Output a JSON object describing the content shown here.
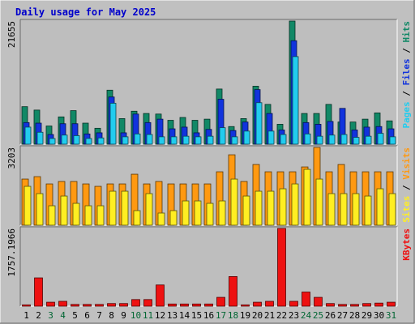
{
  "colors": {
    "background": "#c0c0c0",
    "plot_bg": "#bebebe",
    "title": "#0000cc",
    "hits": "#118866",
    "files": "#1133dd",
    "pages": "#22ccee",
    "visits": "#ff9911",
    "sites": "#ffee22",
    "kbytes": "#ee1111",
    "weekend_label": "#006633",
    "weekday_label": "#000000"
  },
  "chart_data": {
    "type": "bar",
    "title": "Daily usage for May 2025",
    "days": [
      "1",
      "2",
      "3",
      "4",
      "5",
      "6",
      "7",
      "8",
      "9",
      "10",
      "11",
      "12",
      "13",
      "14",
      "15",
      "16",
      "17",
      "18",
      "19",
      "20",
      "21",
      "22",
      "23",
      "24",
      "25",
      "26",
      "27",
      "28",
      "29",
      "30",
      "31"
    ],
    "weekend_days": [
      "3",
      "4",
      "10",
      "11",
      "17",
      "18",
      "24",
      "25",
      "31"
    ],
    "panels": [
      {
        "id": "hits_files_pages",
        "max_label": "21655",
        "ylim": [
          0,
          21655
        ],
        "legend": [
          {
            "text": "Pages",
            "series": "pages"
          },
          {
            "text": " / ",
            "series": "separator"
          },
          {
            "text": "Files",
            "series": "files"
          },
          {
            "text": " / ",
            "series": "separator"
          },
          {
            "text": "Hits",
            "series": "hits"
          }
        ],
        "series": [
          {
            "name": "Hits",
            "key": "hits",
            "values": [
              6600,
              6000,
              3200,
              4800,
              5900,
              3700,
              2800,
              9500,
              4500,
              5800,
              5400,
              5300,
              4200,
              4700,
              4200,
              4400,
              9700,
              3100,
              4500,
              10200,
              7000,
              3500,
              21655,
              5400,
              5400,
              7000,
              3900,
              3900,
              4400,
              5500,
              4100
            ]
          },
          {
            "name": "Files",
            "key": "files",
            "values": [
              3800,
              3700,
              1700,
              3600,
              3600,
              1800,
              2000,
              8300,
              2000,
              5300,
              3800,
              4400,
              2700,
              3000,
              2000,
              2600,
              7900,
              2400,
              3900,
              9600,
              5400,
              2500,
              18200,
              3800,
              3500,
              4000,
              6300,
              2500,
              3000,
              3100,
              2700
            ]
          },
          {
            "name": "Pages",
            "key": "pages",
            "values": [
              3000,
              2100,
              1000,
              1600,
              1500,
              1000,
              1100,
              7200,
              1300,
              1800,
              1700,
              1300,
              1300,
              1400,
              1300,
              1400,
              2900,
              1300,
              2300,
              7300,
              2300,
              1700,
              15400,
              1800,
              1400,
              1600,
              1700,
              1200,
              1400,
              1900,
              1300
            ]
          }
        ]
      },
      {
        "id": "visits_sites",
        "max_label": "3203",
        "ylim": [
          0,
          3203
        ],
        "legend": [
          {
            "text": "Sites",
            "series": "sites"
          },
          {
            "text": " / ",
            "series": "separator"
          },
          {
            "text": "Visits",
            "series": "visits"
          }
        ],
        "series": [
          {
            "name": "Visits",
            "key": "visits",
            "values": [
              1900,
              2000,
              1700,
              1800,
              1800,
              1700,
              1600,
              1700,
              1700,
              2100,
              1700,
              1800,
              1700,
              1700,
              1700,
              1700,
              2200,
              2900,
              1800,
              2500,
              2200,
              2200,
              2200,
              2400,
              3203,
              2200,
              2500,
              2200,
              2200,
              2200,
              2200
            ]
          },
          {
            "name": "Sites",
            "key": "sites",
            "values": [
              1600,
              1300,
              800,
              1200,
              900,
              800,
              800,
              1400,
              1400,
              600,
              1300,
              500,
              600,
              1000,
              1000,
              900,
              1000,
              1900,
              1200,
              1400,
              1400,
              1500,
              1700,
              2300,
              1900,
              1300,
              1300,
              1300,
              1200,
              1500,
              1300
            ]
          }
        ]
      },
      {
        "id": "kbytes",
        "max_label": "1757.1966",
        "ylim": [
          0,
          1757.1966
        ],
        "legend": [
          {
            "text": "KBytes",
            "series": "kbytes"
          }
        ],
        "series": [
          {
            "name": "KBytes",
            "key": "kbytes",
            "values": [
              30,
              640,
              90,
              110,
              40,
              40,
              40,
              60,
              60,
              150,
              150,
              480,
              50,
              50,
              50,
              50,
              200,
              670,
              30,
              90,
              110,
              1757.1966,
              110,
              320,
              200,
              60,
              40,
              40,
              60,
              70,
              90
            ]
          }
        ]
      }
    ]
  }
}
